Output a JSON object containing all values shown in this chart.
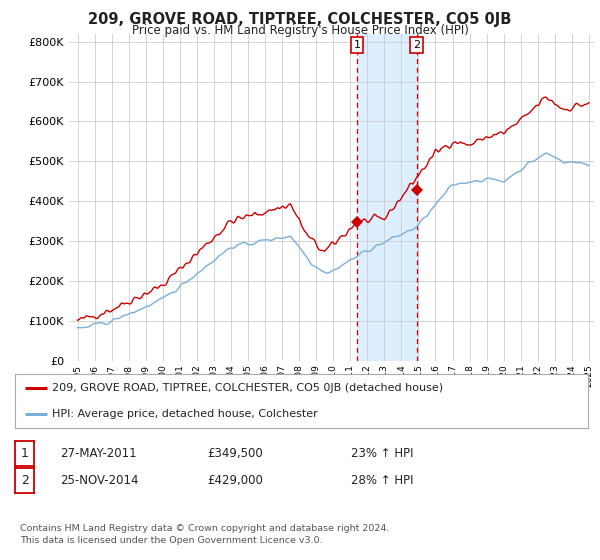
{
  "title": "209, GROVE ROAD, TIPTREE, COLCHESTER, CO5 0JB",
  "subtitle": "Price paid vs. HM Land Registry's House Price Index (HPI)",
  "legend_line1": "209, GROVE ROAD, TIPTREE, COLCHESTER, CO5 0JB (detached house)",
  "legend_line2": "HPI: Average price, detached house, Colchester",
  "transaction1_date": "27-MAY-2011",
  "transaction1_price": "£349,500",
  "transaction1_hpi": "23% ↑ HPI",
  "transaction2_date": "25-NOV-2014",
  "transaction2_price": "£429,000",
  "transaction2_hpi": "28% ↑ HPI",
  "footer": "Contains HM Land Registry data © Crown copyright and database right 2024.\nThis data is licensed under the Open Government Licence v3.0.",
  "red_color": "#cc0000",
  "blue_color": "#7aafda",
  "highlight_color": "#ddeeff",
  "grid_color": "#cccccc",
  "background_color": "#ffffff",
  "ylim": [
    0,
    820000
  ],
  "yticks": [
    0,
    100000,
    200000,
    300000,
    400000,
    500000,
    600000,
    700000,
    800000
  ],
  "ytick_labels": [
    "£0",
    "£100K",
    "£200K",
    "£300K",
    "£400K",
    "£500K",
    "£600K",
    "£700K",
    "£800K"
  ],
  "x_start_year": 1995,
  "x_end_year": 2025,
  "xtick_years": [
    1995,
    1996,
    1997,
    1998,
    1999,
    2000,
    2001,
    2002,
    2003,
    2004,
    2005,
    2006,
    2007,
    2008,
    2009,
    2010,
    2011,
    2012,
    2013,
    2014,
    2015,
    2016,
    2017,
    2018,
    2019,
    2020,
    2021,
    2022,
    2023,
    2024,
    2025
  ],
  "highlight_x1": 2011.4,
  "highlight_x2": 2014.9,
  "transaction1_x": 2011.4,
  "transaction1_y": 349500,
  "transaction2_x": 2014.9,
  "transaction2_y": 429000
}
